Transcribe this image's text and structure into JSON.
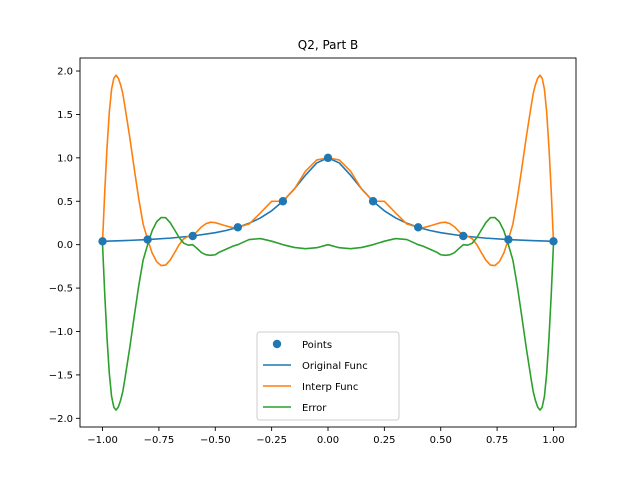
{
  "chart_data": {
    "type": "line",
    "title": "Q2, Part B",
    "xlabel": "",
    "ylabel": "",
    "xlim": [
      -1.1,
      1.1
    ],
    "ylim": [
      -2.1,
      2.15
    ],
    "x_ticks": [
      -1.0,
      -0.75,
      -0.5,
      -0.25,
      0.0,
      0.25,
      0.5,
      0.75,
      1.0
    ],
    "x_tick_labels": [
      "−1.00",
      "−0.75",
      "−0.50",
      "−0.25",
      "0.00",
      "0.25",
      "0.50",
      "0.75",
      "1.00"
    ],
    "y_ticks": [
      -2.0,
      -1.5,
      -1.0,
      -0.5,
      0.0,
      0.5,
      1.0,
      1.5,
      2.0
    ],
    "y_tick_labels": [
      "−2.0",
      "−1.5",
      "−1.0",
      "−0.5",
      "0.0",
      "0.5",
      "1.0",
      "1.5",
      "2.0"
    ],
    "grid": false,
    "legend_position": "bottom-center",
    "series": [
      {
        "name": "Points",
        "kind": "scatter",
        "color": "#1f77b4",
        "x": [
          -1.0,
          -0.8,
          -0.6,
          -0.4,
          -0.2,
          0.0,
          0.2,
          0.4,
          0.6,
          0.8,
          1.0
        ],
        "y": [
          0.0385,
          0.0588,
          0.1,
          0.2,
          0.5,
          1.0,
          0.5,
          0.2,
          0.1,
          0.0588,
          0.0385
        ]
      },
      {
        "name": "Original Func",
        "kind": "line",
        "color": "#1f77b4",
        "x": [
          -1.0,
          -0.9,
          -0.8,
          -0.7,
          -0.6,
          -0.5,
          -0.45,
          -0.4,
          -0.35,
          -0.3,
          -0.25,
          -0.2,
          -0.15,
          -0.1,
          -0.05,
          0.0,
          0.05,
          0.1,
          0.15,
          0.2,
          0.25,
          0.3,
          0.35,
          0.4,
          0.45,
          0.5,
          0.6,
          0.7,
          0.8,
          0.9,
          1.0
        ],
        "y": [
          0.0385,
          0.0471,
          0.0588,
          0.0755,
          0.1,
          0.1379,
          0.1649,
          0.2,
          0.2462,
          0.3077,
          0.3902,
          0.5,
          0.64,
          0.8,
          0.9412,
          1.0,
          0.9412,
          0.8,
          0.64,
          0.5,
          0.3902,
          0.3077,
          0.2462,
          0.2,
          0.1649,
          0.1379,
          0.1,
          0.0755,
          0.0588,
          0.0471,
          0.0385
        ]
      },
      {
        "name": "Interp Func",
        "kind": "line",
        "color": "#ff7f0e",
        "x": [
          -1.0,
          -0.99,
          -0.98,
          -0.97,
          -0.96,
          -0.95,
          -0.94,
          -0.93,
          -0.92,
          -0.91,
          -0.9,
          -0.88,
          -0.86,
          -0.84,
          -0.82,
          -0.8,
          -0.78,
          -0.76,
          -0.74,
          -0.72,
          -0.7,
          -0.68,
          -0.66,
          -0.64,
          -0.62,
          -0.6,
          -0.58,
          -0.56,
          -0.54,
          -0.52,
          -0.5,
          -0.48,
          -0.46,
          -0.44,
          -0.42,
          -0.4,
          -0.35,
          -0.3,
          -0.25,
          -0.2,
          -0.15,
          -0.1,
          -0.05,
          0.0,
          0.05,
          0.1,
          0.15,
          0.2,
          0.25,
          0.3,
          0.35,
          0.4,
          0.42,
          0.44,
          0.46,
          0.48,
          0.5,
          0.52,
          0.54,
          0.56,
          0.58,
          0.6,
          0.62,
          0.64,
          0.66,
          0.68,
          0.7,
          0.72,
          0.74,
          0.76,
          0.78,
          0.8,
          0.82,
          0.84,
          0.86,
          0.88,
          0.9,
          0.91,
          0.92,
          0.93,
          0.94,
          0.95,
          0.96,
          0.97,
          0.98,
          0.99,
          1.0
        ],
        "y": [
          0.0385,
          0.623,
          1.121,
          1.524,
          1.789,
          1.917,
          1.951,
          1.917,
          1.842,
          1.738,
          1.579,
          1.248,
          0.886,
          0.537,
          0.236,
          0.0588,
          -0.096,
          -0.196,
          -0.241,
          -0.235,
          -0.177,
          -0.09,
          0.001,
          0.068,
          0.096,
          0.1,
          0.154,
          0.208,
          0.243,
          0.259,
          0.253,
          0.238,
          0.222,
          0.207,
          0.196,
          0.2,
          0.238,
          0.365,
          0.499,
          0.5,
          0.637,
          0.846,
          0.976,
          1.0,
          0.976,
          0.846,
          0.637,
          0.5,
          0.499,
          0.365,
          0.238,
          0.2,
          0.196,
          0.207,
          0.222,
          0.238,
          0.253,
          0.259,
          0.243,
          0.208,
          0.154,
          0.1,
          0.096,
          0.068,
          0.001,
          -0.09,
          -0.177,
          -0.235,
          -0.241,
          -0.196,
          -0.096,
          0.0588,
          0.236,
          0.537,
          0.886,
          1.248,
          1.579,
          1.738,
          1.842,
          1.917,
          1.951,
          1.917,
          1.789,
          1.524,
          1.121,
          0.623,
          0.0385
        ]
      },
      {
        "name": "Error",
        "kind": "line",
        "color": "#2ca02c",
        "x": [
          -1.0,
          -0.99,
          -0.98,
          -0.97,
          -0.96,
          -0.95,
          -0.94,
          -0.93,
          -0.92,
          -0.91,
          -0.9,
          -0.88,
          -0.86,
          -0.84,
          -0.82,
          -0.8,
          -0.78,
          -0.76,
          -0.74,
          -0.72,
          -0.7,
          -0.68,
          -0.66,
          -0.64,
          -0.62,
          -0.6,
          -0.58,
          -0.56,
          -0.54,
          -0.52,
          -0.5,
          -0.48,
          -0.46,
          -0.44,
          -0.42,
          -0.4,
          -0.35,
          -0.3,
          -0.25,
          -0.2,
          -0.15,
          -0.1,
          -0.05,
          0.0,
          0.05,
          0.1,
          0.15,
          0.2,
          0.25,
          0.3,
          0.35,
          0.4,
          0.42,
          0.44,
          0.46,
          0.48,
          0.5,
          0.52,
          0.54,
          0.56,
          0.58,
          0.6,
          0.62,
          0.64,
          0.66,
          0.68,
          0.7,
          0.72,
          0.74,
          0.76,
          0.78,
          0.8,
          0.82,
          0.84,
          0.86,
          0.88,
          0.9,
          0.91,
          0.92,
          0.93,
          0.94,
          0.95,
          0.96,
          0.97,
          0.98,
          0.99,
          1.0
        ],
        "y": [
          0.0,
          -0.584,
          -1.081,
          -1.483,
          -1.746,
          -1.872,
          -1.905,
          -1.87,
          -1.794,
          -1.69,
          -1.532,
          -1.198,
          -0.834,
          -0.481,
          -0.177,
          0.0,
          0.16,
          0.264,
          0.313,
          0.311,
          0.253,
          0.169,
          0.081,
          0.017,
          -0.006,
          0.0,
          -0.046,
          -0.094,
          -0.117,
          -0.123,
          -0.116,
          -0.084,
          -0.061,
          -0.038,
          -0.015,
          0.0,
          0.059,
          0.07,
          0.04,
          0.0,
          -0.032,
          -0.046,
          -0.035,
          0.0,
          -0.035,
          -0.046,
          -0.032,
          0.0,
          0.04,
          0.07,
          0.059,
          0.0,
          -0.015,
          -0.038,
          -0.061,
          -0.084,
          -0.116,
          -0.123,
          -0.117,
          -0.094,
          -0.046,
          0.0,
          -0.006,
          0.017,
          0.081,
          0.169,
          0.253,
          0.311,
          0.313,
          0.264,
          0.16,
          0.0,
          -0.177,
          -0.481,
          -0.834,
          -1.198,
          -1.532,
          -1.69,
          -1.794,
          -1.87,
          -1.905,
          -1.872,
          -1.746,
          -1.483,
          -1.081,
          -0.584,
          0.0
        ]
      }
    ]
  }
}
